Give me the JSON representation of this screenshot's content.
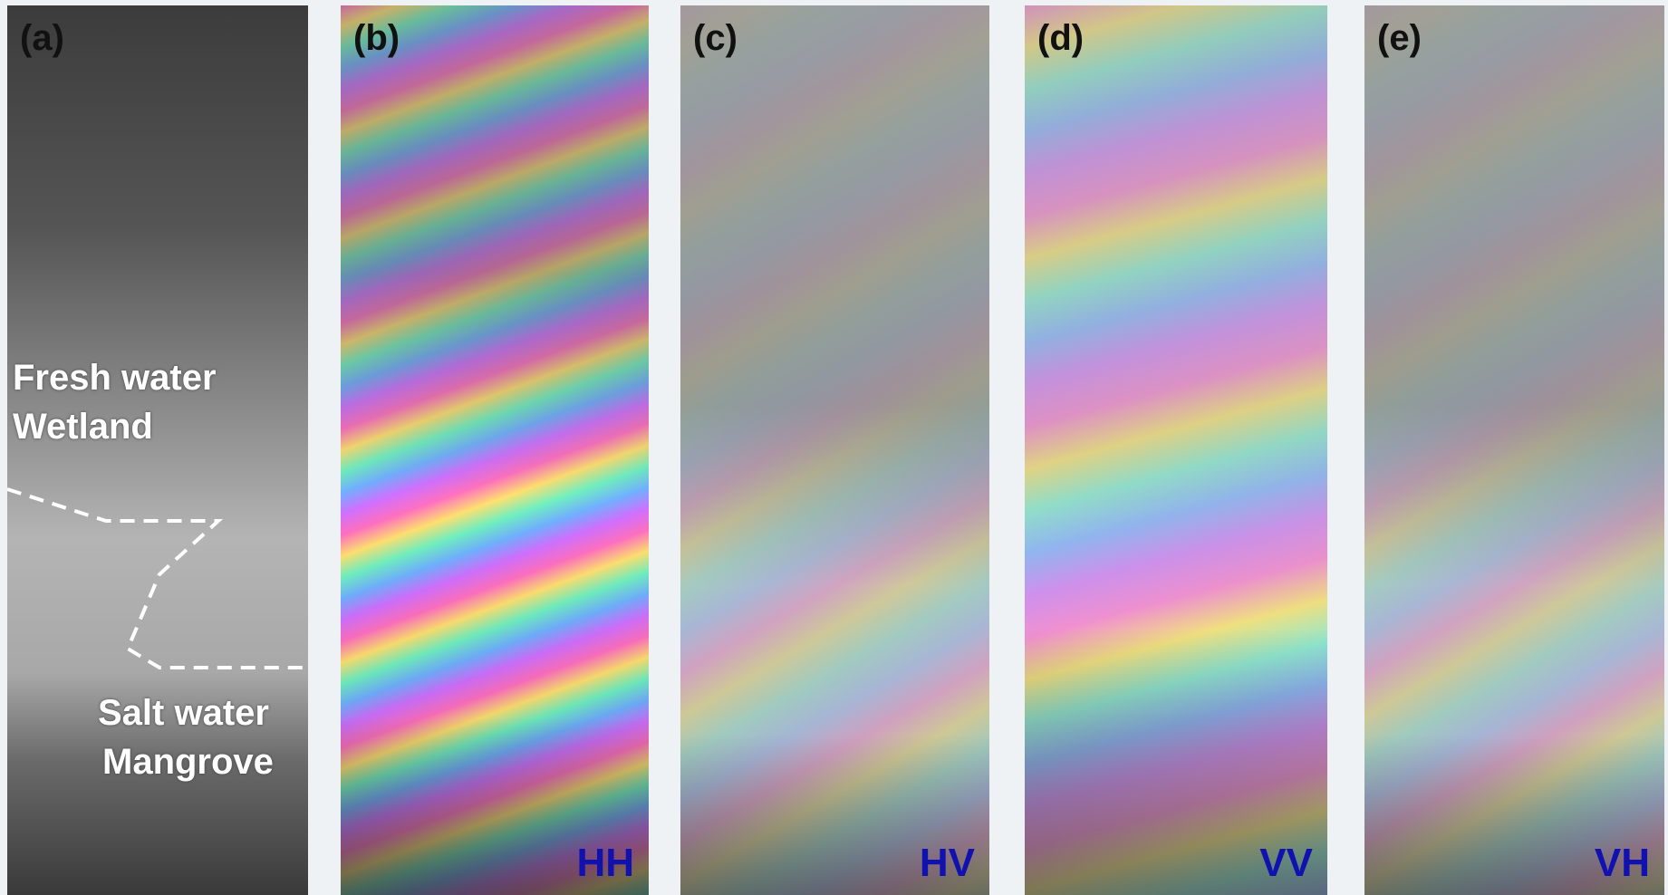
{
  "panels": [
    {
      "label": "(a)"
    },
    {
      "label": "(b)",
      "polarization": "HH"
    },
    {
      "label": "(c)",
      "polarization": "HV"
    },
    {
      "label": "(d)",
      "polarization": "VV"
    },
    {
      "label": "(e)",
      "polarization": "VH"
    }
  ],
  "annotations": [
    {
      "lines": [
        "Fresh water",
        "Wetland"
      ]
    },
    {
      "lines": [
        "Salt water",
        "Mangrove"
      ]
    }
  ]
}
